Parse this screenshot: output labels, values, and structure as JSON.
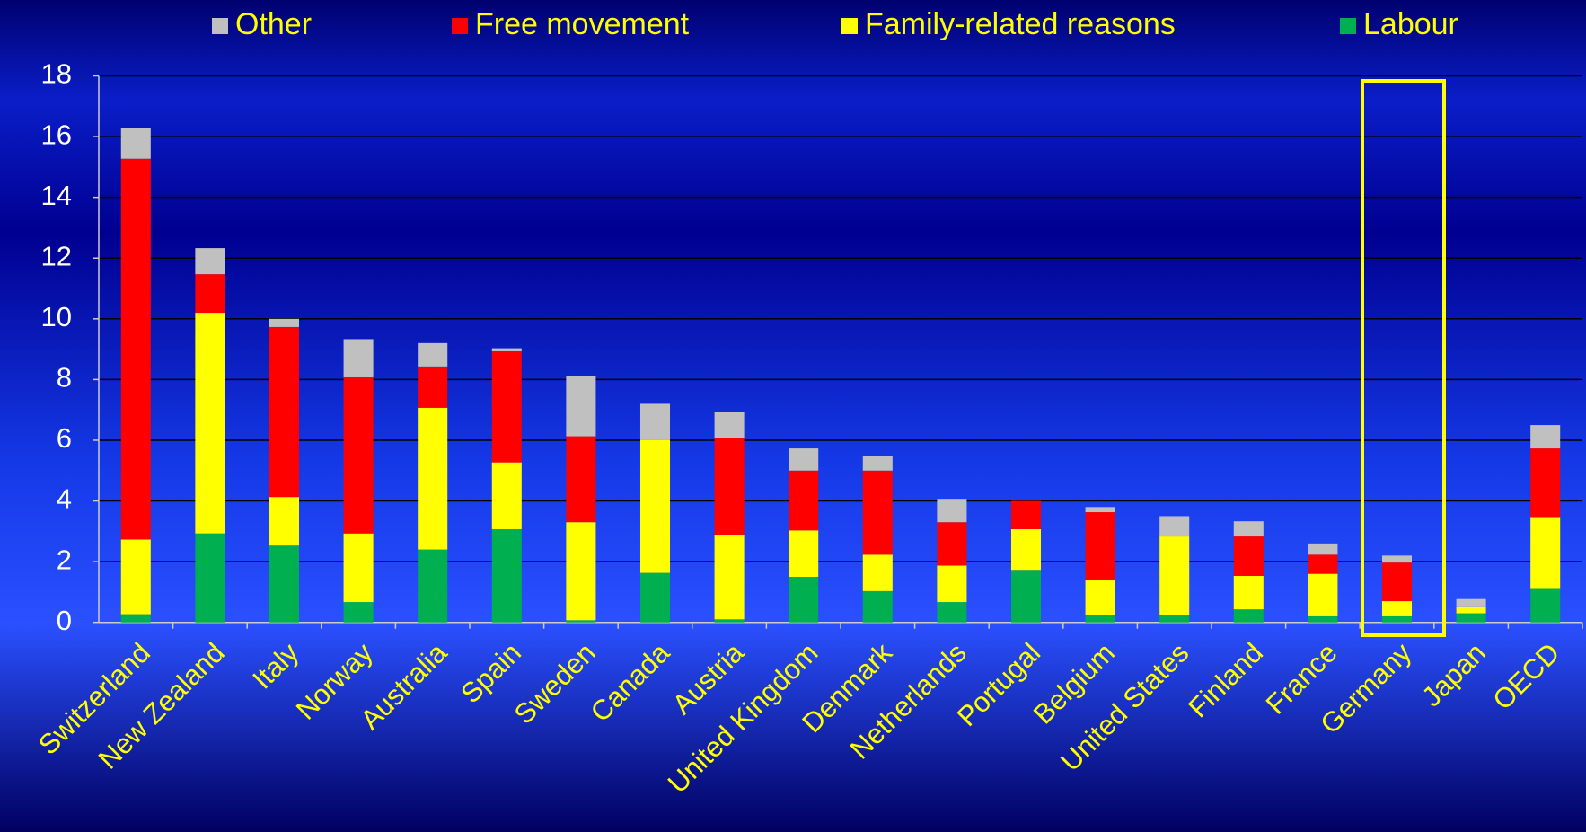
{
  "chart_data": {
    "type": "bar",
    "stacked": true,
    "categories": [
      "Switzerland",
      "New Zealand",
      "Italy",
      "Norway",
      "Australia",
      "Spain",
      "Sweden",
      "Canada",
      "Austria",
      "United Kingdom",
      "Denmark",
      "Netherlands",
      "Portugal",
      "Belgium",
      "United States",
      "Finland",
      "France",
      "Germany",
      "Japan",
      "OECD"
    ],
    "series": [
      {
        "name": "Other",
        "color": "#c0c0c0",
        "values": [
          1.0,
          0.86,
          0.27,
          1.26,
          0.77,
          0.1,
          2.0,
          1.2,
          0.86,
          0.73,
          0.47,
          0.77,
          0,
          0.17,
          0.67,
          0.5,
          0.37,
          0.23,
          0.27,
          0.77
        ]
      },
      {
        "name": "Free movement",
        "color": "#ff0000",
        "values": [
          12.54,
          1.27,
          5.6,
          5.14,
          1.36,
          3.66,
          2.83,
          0,
          3.2,
          1.97,
          2.77,
          1.43,
          0.93,
          2.23,
          0,
          1.3,
          0.63,
          1.27,
          0,
          2.26
        ]
      },
      {
        "name": "Family-related reasons",
        "color": "#ffff00",
        "values": [
          2.46,
          7.27,
          1.6,
          2.26,
          4.67,
          2.2,
          3.23,
          4.37,
          2.77,
          1.53,
          1.2,
          1.2,
          1.34,
          1.17,
          2.6,
          1.1,
          1.4,
          0.5,
          0.2,
          2.34
        ]
      },
      {
        "name": "Labour",
        "color": "#00b050",
        "values": [
          0.27,
          2.93,
          2.53,
          0.67,
          2.4,
          3.07,
          0.07,
          1.63,
          0.1,
          1.5,
          1.03,
          0.67,
          1.73,
          0.23,
          0.23,
          0.43,
          0.2,
          0.2,
          0.3,
          1.13
        ]
      }
    ],
    "ylim": [
      0,
      18
    ],
    "yticks": [
      0,
      2,
      4,
      6,
      8,
      10,
      12,
      14,
      16,
      18
    ],
    "grid": true,
    "legend": "top"
  }
}
